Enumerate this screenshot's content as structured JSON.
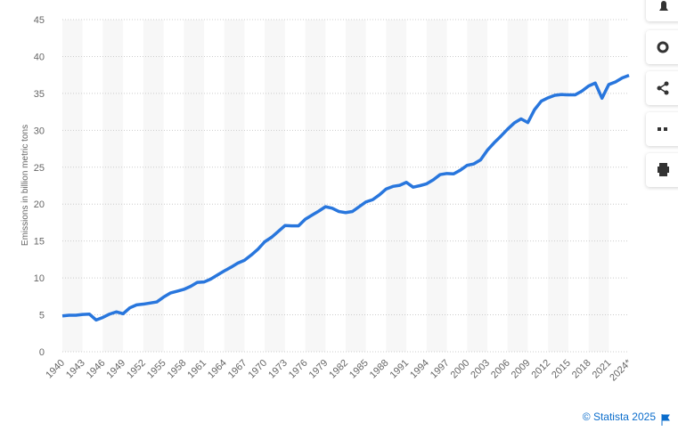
{
  "chart_data": {
    "type": "line",
    "y_label": "Emissions in billion metric tons",
    "source": "© Statista 2025",
    "color": "#2876dd",
    "grid": true,
    "categories": [
      "1940",
      null,
      null,
      "1943",
      null,
      null,
      "1946",
      null,
      null,
      "1949",
      null,
      null,
      "1952",
      null,
      null,
      "1955",
      null,
      null,
      "1958",
      null,
      null,
      "1961",
      null,
      null,
      "1964",
      null,
      null,
      "1967",
      null,
      null,
      "1970",
      null,
      null,
      "1973",
      null,
      null,
      "1976",
      null,
      null,
      "1979",
      null,
      null,
      "1982",
      null,
      null,
      "1985",
      null,
      null,
      "1988",
      null,
      null,
      "1991",
      null,
      null,
      "1994",
      null,
      null,
      "1997",
      null,
      null,
      "2000",
      null,
      null,
      "2003",
      null,
      null,
      "2006",
      null,
      null,
      "2009",
      null,
      null,
      "2012",
      null,
      null,
      "2015",
      null,
      null,
      "2018",
      null,
      null,
      "2021",
      null,
      null,
      "2024*"
    ],
    "values": [
      4.85,
      4.95,
      4.95,
      5.05,
      5.1,
      4.3,
      4.65,
      5.1,
      5.4,
      5.15,
      5.95,
      6.35,
      6.45,
      6.6,
      6.75,
      7.4,
      7.95,
      8.2,
      8.45,
      8.85,
      9.4,
      9.45,
      9.85,
      10.4,
      10.95,
      11.45,
      12.0,
      12.4,
      13.1,
      13.9,
      14.9,
      15.5,
      16.3,
      17.1,
      17.05,
      17.05,
      17.95,
      18.5,
      19.05,
      19.65,
      19.45,
      19.0,
      18.85,
      19.0,
      19.65,
      20.3,
      20.6,
      21.25,
      22.05,
      22.4,
      22.55,
      22.95,
      22.3,
      22.5,
      22.75,
      23.3,
      24.0,
      24.15,
      24.1,
      24.6,
      25.25,
      25.45,
      26.0,
      27.3,
      28.3,
      29.2,
      30.15,
      31.0,
      31.55,
      31.05,
      32.8,
      33.95,
      34.4,
      34.75,
      34.85,
      34.8,
      34.8,
      35.3,
      36.0,
      36.4,
      34.35,
      36.2,
      36.55,
      37.1,
      37.45
    ],
    "ylim": [
      0,
      45
    ],
    "yticks": [
      0,
      5,
      10,
      15,
      20,
      25,
      30,
      35,
      40,
      45
    ]
  }
}
